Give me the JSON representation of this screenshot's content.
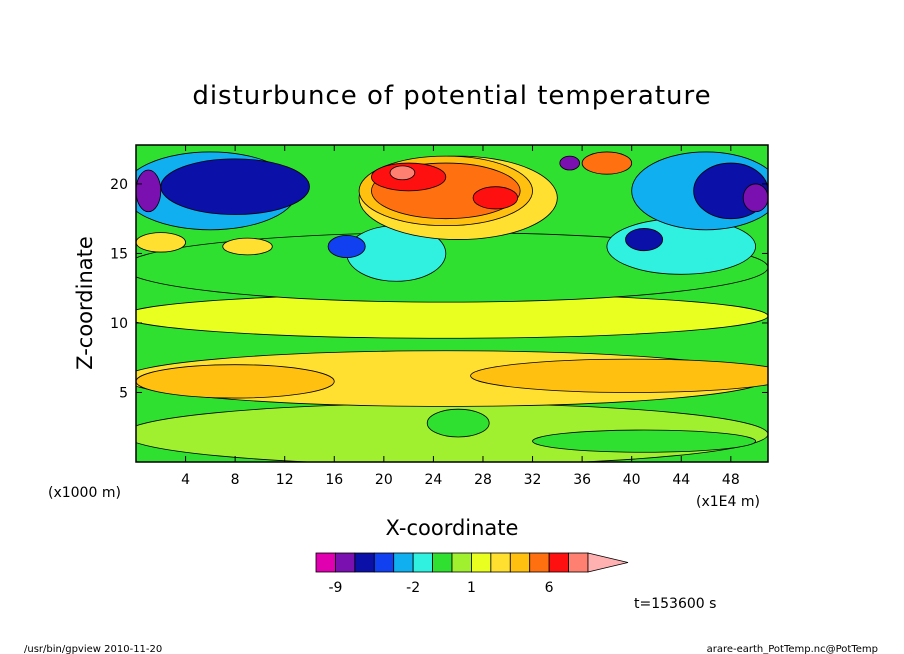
{
  "chart_data": {
    "type": "heatmap",
    "title": "disturbunce of potential temperature",
    "xlabel": "X-coordinate",
    "ylabel": "Z-coordinate",
    "x_unit_left": "(x1000 m)",
    "x_unit_right": "(x1E4 m)",
    "xlim": [
      0,
      51
    ],
    "ylim": [
      0,
      22.8
    ],
    "x_ticks": [
      4,
      8,
      12,
      16,
      20,
      24,
      28,
      32,
      36,
      40,
      44,
      48
    ],
    "y_ticks": [
      5,
      10,
      15,
      20
    ],
    "time_label": "t=153600 s",
    "colorbar": {
      "labels": [
        {
          "text": "-9",
          "value": -9
        },
        {
          "text": "-2",
          "value": -2
        },
        {
          "text": "1",
          "value": 1
        },
        {
          "text": "6",
          "value": 6
        }
      ],
      "levels": [
        {
          "value": -12,
          "color": "#e000b0"
        },
        {
          "value": -9,
          "color": "#7a10b0"
        },
        {
          "value": -6,
          "color": "#0a10a8"
        },
        {
          "value": -4,
          "color": "#1040f0"
        },
        {
          "value": -3,
          "color": "#10b0f0"
        },
        {
          "value": -2,
          "color": "#30f0e0"
        },
        {
          "value": -1,
          "color": "#30e030"
        },
        {
          "value": 0,
          "color": "#a0f030"
        },
        {
          "value": 1,
          "color": "#e8ff20"
        },
        {
          "value": 2,
          "color": "#ffe030"
        },
        {
          "value": 3,
          "color": "#ffc010"
        },
        {
          "value": 4,
          "color": "#ff7010"
        },
        {
          "value": 6,
          "color": "#ff1010"
        },
        {
          "value": 9,
          "color": "#ff8070"
        },
        {
          "value": 12,
          "color": "#ffb0b0"
        }
      ]
    },
    "regions": [
      {
        "value": 0.5,
        "cx": 25,
        "cy": 2.0,
        "rx": 26,
        "ry": 2.2
      },
      {
        "value": 2,
        "cx": 25,
        "cy": 6.0,
        "rx": 26,
        "ry": 2.0
      },
      {
        "value": 3,
        "cx": 8,
        "cy": 5.8,
        "rx": 8,
        "ry": 1.2
      },
      {
        "value": 3,
        "cx": 40,
        "cy": 6.2,
        "rx": 13,
        "ry": 1.2
      },
      {
        "value": 1,
        "cx": 25,
        "cy": 10.5,
        "rx": 26,
        "ry": 1.6
      },
      {
        "value": -1,
        "cx": 25,
        "cy": 14.0,
        "rx": 26,
        "ry": 2.5
      },
      {
        "value": -1,
        "cx": 26,
        "cy": 2.8,
        "rx": 2.5,
        "ry": 1.0
      },
      {
        "value": -1,
        "cx": 41,
        "cy": 1.5,
        "rx": 9,
        "ry": 0.8
      },
      {
        "value": -2,
        "cx": 21,
        "cy": 15.0,
        "rx": 4,
        "ry": 2.0
      },
      {
        "value": -2,
        "cx": 44,
        "cy": 15.5,
        "rx": 6,
        "ry": 2.0
      },
      {
        "value": -4,
        "cx": 17,
        "cy": 15.5,
        "rx": 1.5,
        "ry": 0.8
      },
      {
        "value": -3,
        "cx": 6,
        "cy": 19.5,
        "rx": 7,
        "ry": 2.8
      },
      {
        "value": -6,
        "cx": 8,
        "cy": 19.8,
        "rx": 6,
        "ry": 2.0
      },
      {
        "value": -9,
        "cx": 1,
        "cy": 19.5,
        "rx": 1,
        "ry": 1.5
      },
      {
        "value": -3,
        "cx": 46,
        "cy": 19.5,
        "rx": 6,
        "ry": 2.8
      },
      {
        "value": -6,
        "cx": 48,
        "cy": 19.5,
        "rx": 3,
        "ry": 2.0
      },
      {
        "value": -9,
        "cx": 50,
        "cy": 19.0,
        "rx": 1,
        "ry": 1.0
      },
      {
        "value": -6,
        "cx": 41,
        "cy": 16.0,
        "rx": 1.5,
        "ry": 0.8
      },
      {
        "value": 2,
        "cx": 26,
        "cy": 19.0,
        "rx": 8,
        "ry": 3.0
      },
      {
        "value": 3,
        "cx": 25,
        "cy": 19.5,
        "rx": 7,
        "ry": 2.5
      },
      {
        "value": 4,
        "cx": 25,
        "cy": 19.5,
        "rx": 6,
        "ry": 2.0
      },
      {
        "value": 6,
        "cx": 22,
        "cy": 20.5,
        "rx": 3,
        "ry": 1.0
      },
      {
        "value": 6,
        "cx": 29,
        "cy": 19.0,
        "rx": 1.8,
        "ry": 0.8
      },
      {
        "value": 9,
        "cx": 21.5,
        "cy": 20.8,
        "rx": 1.0,
        "ry": 0.5
      },
      {
        "value": 4,
        "cx": 38,
        "cy": 21.5,
        "rx": 2,
        "ry": 0.8
      },
      {
        "value": -9,
        "cx": 35,
        "cy": 21.5,
        "rx": 0.8,
        "ry": 0.5
      },
      {
        "value": 2,
        "cx": 2,
        "cy": 15.8,
        "rx": 2,
        "ry": 0.7
      },
      {
        "value": 2,
        "cx": 9,
        "cy": 15.5,
        "rx": 2,
        "ry": 0.6
      }
    ]
  },
  "footer": {
    "left": "/usr/bin/gpview  2010-11-20",
    "right": "arare-earth_PotTemp.nc@PotTemp"
  }
}
